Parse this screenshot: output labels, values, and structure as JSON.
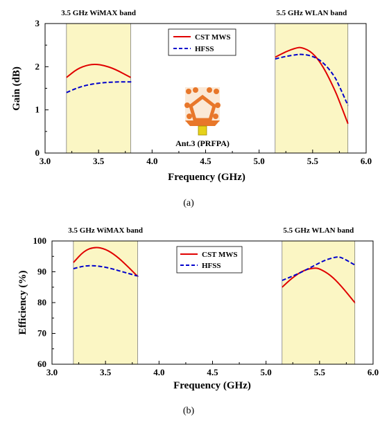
{
  "colors": {
    "cst": "#e00000",
    "hfss": "#0000cc",
    "band_fill": "#fbf6c4"
  },
  "chart_data": [
    {
      "id": "a",
      "type": "line",
      "caption": "(a)",
      "xlabel": "Frequency (GHz)",
      "ylabel": "Gain (dB)",
      "xlim": [
        3.0,
        6.0
      ],
      "ylim": [
        0,
        3
      ],
      "xticks": [
        "3.0",
        "3.5",
        "4.0",
        "4.5",
        "5.0",
        "5.5",
        "6.0"
      ],
      "yticks": [
        "0",
        "1",
        "2",
        "3"
      ],
      "bands": [
        {
          "label": "3.5 GHz WiMAX band",
          "x": [
            3.2,
            3.8
          ]
        },
        {
          "label": "5.5 GHz WLAN band",
          "x": [
            5.15,
            5.83
          ]
        }
      ],
      "legend": [
        "CST MWS",
        "HFSS"
      ],
      "legend_position": "top-center",
      "annotation": "Ant.3 (PRFPA)",
      "series": [
        {
          "name": "CST MWS",
          "style": "solid",
          "segments": [
            {
              "x": [
                3.2,
                3.3,
                3.4,
                3.47,
                3.55,
                3.65,
                3.8
              ],
              "y": [
                1.75,
                1.95,
                2.04,
                2.06,
                2.03,
                1.95,
                1.75
              ]
            },
            {
              "x": [
                5.15,
                5.25,
                5.35,
                5.4,
                5.5,
                5.6,
                5.7,
                5.75,
                5.83
              ],
              "y": [
                2.22,
                2.35,
                2.44,
                2.45,
                2.33,
                2.0,
                1.5,
                1.2,
                0.68
              ]
            }
          ]
        },
        {
          "name": "HFSS",
          "style": "dashed",
          "segments": [
            {
              "x": [
                3.2,
                3.3,
                3.4,
                3.5,
                3.6,
                3.7,
                3.8
              ],
              "y": [
                1.4,
                1.51,
                1.58,
                1.62,
                1.64,
                1.65,
                1.65
              ]
            },
            {
              "x": [
                5.15,
                5.25,
                5.35,
                5.4,
                5.5,
                5.6,
                5.7,
                5.75,
                5.83
              ],
              "y": [
                2.18,
                2.24,
                2.28,
                2.29,
                2.25,
                2.1,
                1.8,
                1.55,
                1.1
              ]
            }
          ]
        }
      ]
    },
    {
      "id": "b",
      "type": "line",
      "caption": "(b)",
      "xlabel": "Frequency (GHz)",
      "ylabel": "Efficiency (%)",
      "xlim": [
        3.0,
        6.0
      ],
      "ylim": [
        60,
        100
      ],
      "xticks": [
        "3.0",
        "3.5",
        "4.0",
        "4.5",
        "5.0",
        "5.5",
        "6.0"
      ],
      "yticks": [
        "60",
        "70",
        "80",
        "90",
        "100"
      ],
      "bands": [
        {
          "label": "3.5 GHz WiMAX band",
          "x": [
            3.2,
            3.8
          ]
        },
        {
          "label": "5.5 GHz WLAN band",
          "x": [
            5.15,
            5.83
          ]
        }
      ],
      "legend": [
        "CST MWS",
        "HFSS"
      ],
      "legend_position": "top-center",
      "series": [
        {
          "name": "CST MWS",
          "style": "solid",
          "segments": [
            {
              "x": [
                3.2,
                3.3,
                3.4,
                3.5,
                3.6,
                3.7,
                3.8
              ],
              "y": [
                93,
                96.8,
                98.1,
                97.4,
                95.2,
                92.0,
                88.5
              ]
            },
            {
              "x": [
                5.15,
                5.25,
                5.35,
                5.45,
                5.5,
                5.6,
                5.7,
                5.83
              ],
              "y": [
                85,
                88.2,
                90.5,
                91.3,
                91.0,
                89.0,
                85.5,
                80
              ]
            }
          ]
        },
        {
          "name": "HFSS",
          "style": "dashed",
          "segments": [
            {
              "x": [
                3.2,
                3.3,
                3.4,
                3.5,
                3.6,
                3.7,
                3.8
              ],
              "y": [
                91.0,
                91.9,
                92.0,
                91.5,
                90.6,
                89.6,
                88.6
              ]
            },
            {
              "x": [
                5.15,
                5.25,
                5.35,
                5.45,
                5.55,
                5.65,
                5.7,
                5.83
              ],
              "y": [
                87.2,
                88.6,
                90.2,
                92.0,
                93.8,
                94.8,
                94.8,
                92.2
              ]
            }
          ]
        }
      ]
    }
  ]
}
